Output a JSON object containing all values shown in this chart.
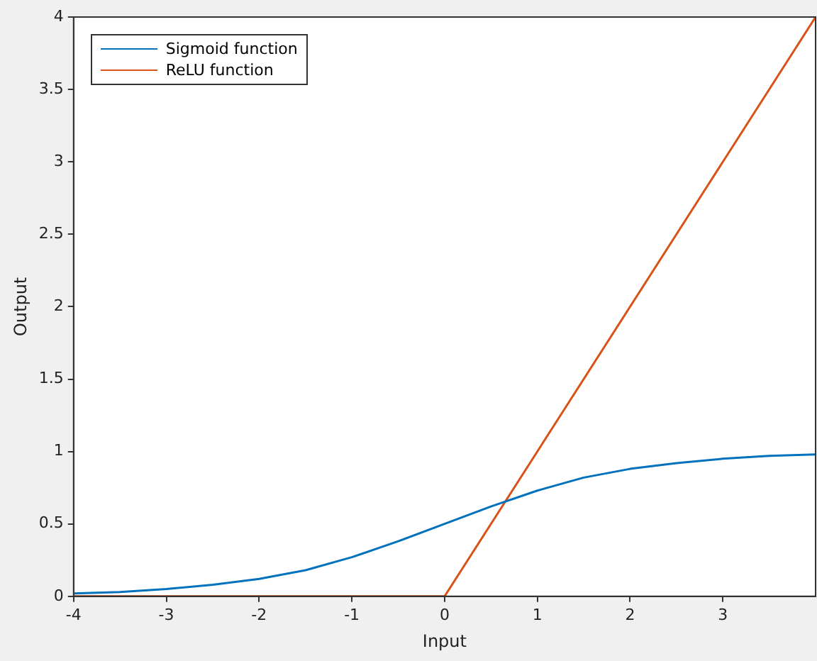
{
  "chart_data": {
    "type": "line",
    "xlabel": "Input",
    "ylabel": "Output",
    "xlim": [
      -4,
      4
    ],
    "xticks": [
      -4,
      -3,
      -2,
      -1,
      0,
      1,
      2,
      3
    ],
    "ylim": [
      0,
      4
    ],
    "yticks": [
      0,
      0.5,
      1,
      1.5,
      2,
      2.5,
      3,
      3.5,
      4
    ],
    "grid": false,
    "legend": "top left",
    "marker": "none",
    "line_style": "solid",
    "series": [
      {
        "name": "Sigmoid function",
        "color": "#0072bd",
        "x": [
          -4,
          -3.5,
          -3,
          -2.5,
          -2,
          -1.5,
          -1,
          -0.5,
          0,
          0.5,
          1,
          1.5,
          2,
          2.5,
          3,
          3.5,
          4
        ],
        "values": [
          0.02,
          0.03,
          0.05,
          0.08,
          0.12,
          0.18,
          0.27,
          0.38,
          0.5,
          0.62,
          0.73,
          0.82,
          0.88,
          0.92,
          0.95,
          0.97,
          0.98
        ]
      },
      {
        "name": "ReLU function",
        "color": "#d95319",
        "x": [
          -4,
          0,
          4
        ],
        "values": [
          0,
          0,
          4
        ]
      }
    ]
  }
}
